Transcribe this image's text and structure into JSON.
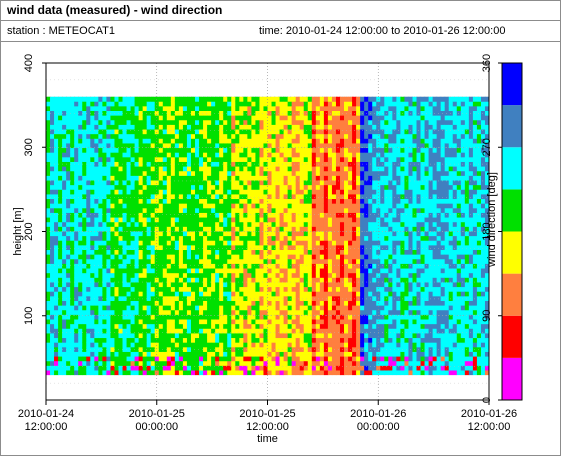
{
  "header": {
    "title": "wind data (measured) - wind direction",
    "station_label": "station : METEOCAT1",
    "time_label": "time: 2010-01-24 12:00:00 to 2010-01-26 12:00:00"
  },
  "chart_data": {
    "type": "heatmap",
    "title": "wind data (measured) - wind direction",
    "xlabel": "time",
    "ylabel": "height [m]",
    "x_range": [
      "2010-01-24 12:00:00",
      "2010-01-26 12:00:00"
    ],
    "x_ticks": [
      {
        "line1": "2010-01-24",
        "line2": "12:00:00"
      },
      {
        "line1": "2010-01-25",
        "line2": "00:00:00"
      },
      {
        "line1": "2010-01-25",
        "line2": "12:00:00"
      },
      {
        "line1": "2010-01-26",
        "line2": "00:00:00"
      },
      {
        "line1": "2010-01-26",
        "line2": "12:00:00"
      }
    ],
    "ylim": [
      0,
      400
    ],
    "y_ticks": [
      100,
      200,
      300,
      400
    ],
    "colorbar": {
      "label": "wind direction [deg]",
      "range": [
        0,
        360
      ],
      "ticks": [
        0,
        90,
        180,
        270,
        360
      ],
      "bins": [
        {
          "from": 0,
          "to": 45,
          "color": "#ff00ff"
        },
        {
          "from": 45,
          "to": 90,
          "color": "#ff0000"
        },
        {
          "from": 90,
          "to": 135,
          "color": "#ff7f3f"
        },
        {
          "from": 135,
          "to": 180,
          "color": "#ffff00"
        },
        {
          "from": 180,
          "to": 225,
          "color": "#00e000"
        },
        {
          "from": 225,
          "to": 270,
          "color": "#00ffff"
        },
        {
          "from": 270,
          "to": 315,
          "color": "#4080c0"
        },
        {
          "from": 315,
          "to": 360,
          "color": "#0000ff"
        }
      ]
    },
    "data_height_range_m": [
      30,
      360
    ],
    "grid": true,
    "dominant_direction_by_time": [
      {
        "from": "2010-01-24 12:00",
        "to": "2010-01-24 19:00",
        "direction_deg": 245
      },
      {
        "from": "2010-01-24 19:00",
        "to": "2010-01-25 00:00",
        "direction_deg": 200
      },
      {
        "from": "2010-01-25 00:00",
        "to": "2010-01-25 08:00",
        "direction_deg": 195
      },
      {
        "from": "2010-01-25 08:00",
        "to": "2010-01-25 12:00",
        "direction_deg": 160
      },
      {
        "from": "2010-01-25 12:00",
        "to": "2010-01-25 17:00",
        "direction_deg": 150
      },
      {
        "from": "2010-01-25 17:00",
        "to": "2010-01-25 22:00",
        "direction_deg": 110
      },
      {
        "from": "2010-01-25 22:00",
        "to": "2010-01-26 00:00",
        "direction_deg": 290
      },
      {
        "from": "2010-01-26 00:00",
        "to": "2010-01-26 12:00",
        "direction_deg": 255
      }
    ]
  }
}
